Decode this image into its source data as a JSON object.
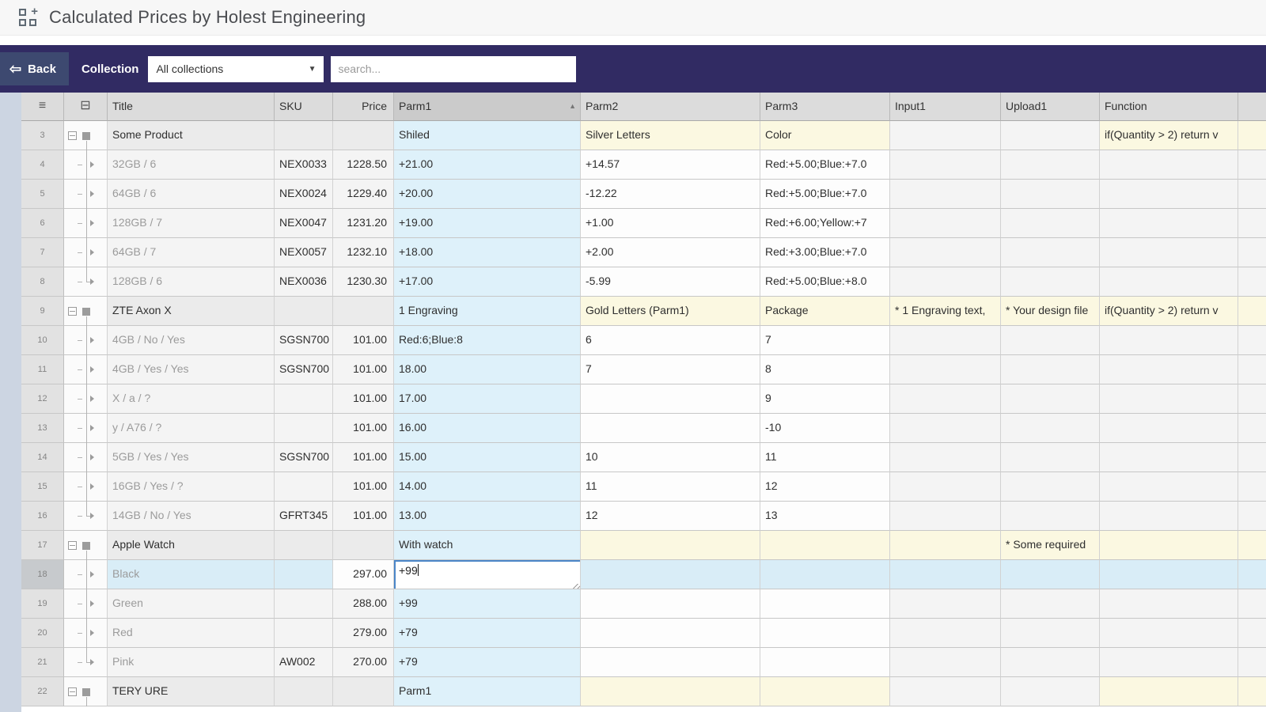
{
  "app": {
    "title": "Calculated Prices by Holest Engineering"
  },
  "toolbar": {
    "back": "Back",
    "collection_label": "Collection",
    "collection_value": "All collections",
    "search_placeholder": "search..."
  },
  "colors": {
    "toolbar_bg": "#312b63",
    "back_button_bg": "#3d4970",
    "parm1_cell": "#def1fa",
    "group_param_cell": "#fbf8e1",
    "selected_row": "#d9edf7",
    "edit_border": "#4a86c8"
  },
  "grid": {
    "header": {
      "menu_icon": "≡",
      "collapse_all_icon": "⊟",
      "columns": [
        {
          "key": "title",
          "label": "Title"
        },
        {
          "key": "sku",
          "label": "SKU"
        },
        {
          "key": "price",
          "label": "Price"
        },
        {
          "key": "parm1",
          "label": "Parm1"
        },
        {
          "key": "parm2",
          "label": "Parm2"
        },
        {
          "key": "parm3",
          "label": "Parm3"
        },
        {
          "key": "input1",
          "label": "Input1"
        },
        {
          "key": "upload1",
          "label": "Upload1"
        },
        {
          "key": "func",
          "label": "Function"
        },
        {
          "key": "sliver",
          "label": ""
        }
      ],
      "sort": {
        "column": "Parm1",
        "direction": "asc",
        "arrow": "▲"
      }
    },
    "edit": {
      "row": 18,
      "column": "Parm1",
      "value": "+99"
    },
    "rows": [
      {
        "num": 3,
        "kind": "group",
        "cells": [
          [
            "Some Product",
            "g"
          ],
          [
            "",
            "g"
          ],
          [
            "",
            "g"
          ],
          [
            "Shiled",
            "b"
          ],
          [
            "Silver Letters",
            "y"
          ],
          [
            "Color",
            "y"
          ],
          [
            "",
            "lg"
          ],
          [
            "",
            "lg"
          ],
          [
            "if(Quantity > 2)   return v",
            "y"
          ],
          [
            "",
            "y"
          ]
        ]
      },
      {
        "num": 4,
        "kind": "child",
        "cells": [
          [
            "32GB / 6",
            "lg"
          ],
          [
            "NEX0033",
            "lg"
          ],
          [
            "1228.50",
            "lg"
          ],
          [
            "+21.00",
            "b"
          ],
          [
            "+14.57",
            "w"
          ],
          [
            "Red:+5.00;Blue:+7.0",
            "w"
          ],
          [
            "",
            "lg"
          ],
          [
            "",
            "lg"
          ],
          [
            "",
            "lg"
          ],
          [
            "",
            "lg"
          ]
        ]
      },
      {
        "num": 5,
        "kind": "child",
        "cells": [
          [
            "64GB / 6",
            "lg"
          ],
          [
            "NEX0024",
            "lg"
          ],
          [
            "1229.40",
            "lg"
          ],
          [
            "+20.00",
            "b"
          ],
          [
            "-12.22",
            "w"
          ],
          [
            "Red:+5.00;Blue:+7.0",
            "w"
          ],
          [
            "",
            "lg"
          ],
          [
            "",
            "lg"
          ],
          [
            "",
            "lg"
          ],
          [
            "",
            "lg"
          ]
        ]
      },
      {
        "num": 6,
        "kind": "child",
        "cells": [
          [
            "128GB / 7",
            "lg"
          ],
          [
            "NEX0047",
            "lg"
          ],
          [
            "1231.20",
            "lg"
          ],
          [
            "+19.00",
            "b"
          ],
          [
            "+1.00",
            "w"
          ],
          [
            "Red:+6.00;Yellow:+7",
            "w"
          ],
          [
            "",
            "lg"
          ],
          [
            "",
            "lg"
          ],
          [
            "",
            "lg"
          ],
          [
            "",
            "lg"
          ]
        ]
      },
      {
        "num": 7,
        "kind": "child",
        "cells": [
          [
            "64GB / 7",
            "lg"
          ],
          [
            "NEX0057",
            "lg"
          ],
          [
            "1232.10",
            "lg"
          ],
          [
            "+18.00",
            "b"
          ],
          [
            "+2.00",
            "w"
          ],
          [
            "Red:+3.00;Blue:+7.0",
            "w"
          ],
          [
            "",
            "lg"
          ],
          [
            "",
            "lg"
          ],
          [
            "",
            "lg"
          ],
          [
            "",
            "lg"
          ]
        ]
      },
      {
        "num": 8,
        "kind": "childlast",
        "cells": [
          [
            "128GB / 6",
            "lg"
          ],
          [
            "NEX0036",
            "lg"
          ],
          [
            "1230.30",
            "lg"
          ],
          [
            "+17.00",
            "b"
          ],
          [
            "-5.99",
            "w"
          ],
          [
            "Red:+5.00;Blue:+8.0",
            "w"
          ],
          [
            "",
            "lg"
          ],
          [
            "",
            "lg"
          ],
          [
            "",
            "lg"
          ],
          [
            "",
            "lg"
          ]
        ]
      },
      {
        "num": 9,
        "kind": "group",
        "cells": [
          [
            "ZTE Axon X",
            "g"
          ],
          [
            "",
            "g"
          ],
          [
            "",
            "g"
          ],
          [
            "1 Engraving",
            "b"
          ],
          [
            "Gold Letters (Parm1)",
            "y"
          ],
          [
            "Package",
            "y"
          ],
          [
            "* 1 Engraving text,",
            "y"
          ],
          [
            "* Your design file",
            "y"
          ],
          [
            "if(Quantity > 2)   return v",
            "y"
          ],
          [
            "",
            "y"
          ]
        ]
      },
      {
        "num": 10,
        "kind": "child",
        "cells": [
          [
            "4GB / No / Yes",
            "lg"
          ],
          [
            "SGSN700",
            "lg"
          ],
          [
            "101.00",
            "lg"
          ],
          [
            "Red:6;Blue:8",
            "b"
          ],
          [
            "6",
            "w"
          ],
          [
            "7",
            "w"
          ],
          [
            "",
            "lg"
          ],
          [
            "",
            "lg"
          ],
          [
            "",
            "lg"
          ],
          [
            "",
            "lg"
          ]
        ]
      },
      {
        "num": 11,
        "kind": "child",
        "cells": [
          [
            "4GB / Yes / Yes",
            "lg"
          ],
          [
            "SGSN700",
            "lg"
          ],
          [
            "101.00",
            "lg"
          ],
          [
            "18.00",
            "b"
          ],
          [
            "7",
            "w"
          ],
          [
            "8",
            "w"
          ],
          [
            "",
            "lg"
          ],
          [
            "",
            "lg"
          ],
          [
            "",
            "lg"
          ],
          [
            "",
            "lg"
          ]
        ]
      },
      {
        "num": 12,
        "kind": "child",
        "cells": [
          [
            "X / a / ?",
            "lg"
          ],
          [
            "",
            "lg"
          ],
          [
            "101.00",
            "lg"
          ],
          [
            "17.00",
            "b"
          ],
          [
            "",
            "w"
          ],
          [
            "9",
            "w"
          ],
          [
            "",
            "lg"
          ],
          [
            "",
            "lg"
          ],
          [
            "",
            "lg"
          ],
          [
            "",
            "lg"
          ]
        ]
      },
      {
        "num": 13,
        "kind": "child",
        "cells": [
          [
            "y / A76 / ?",
            "lg"
          ],
          [
            "",
            "lg"
          ],
          [
            "101.00",
            "lg"
          ],
          [
            "16.00",
            "b"
          ],
          [
            "",
            "w"
          ],
          [
            "-10",
            "w"
          ],
          [
            "",
            "lg"
          ],
          [
            "",
            "lg"
          ],
          [
            "",
            "lg"
          ],
          [
            "",
            "lg"
          ]
        ]
      },
      {
        "num": 14,
        "kind": "child",
        "cells": [
          [
            "5GB / Yes / Yes",
            "lg"
          ],
          [
            "SGSN700",
            "lg"
          ],
          [
            "101.00",
            "lg"
          ],
          [
            "15.00",
            "b"
          ],
          [
            "10",
            "w"
          ],
          [
            "11",
            "w"
          ],
          [
            "",
            "lg"
          ],
          [
            "",
            "lg"
          ],
          [
            "",
            "lg"
          ],
          [
            "",
            "lg"
          ]
        ]
      },
      {
        "num": 15,
        "kind": "child",
        "cells": [
          [
            "16GB / Yes / ?",
            "lg"
          ],
          [
            "",
            "lg"
          ],
          [
            "101.00",
            "lg"
          ],
          [
            "14.00",
            "b"
          ],
          [
            "11",
            "w"
          ],
          [
            "12",
            "w"
          ],
          [
            "",
            "lg"
          ],
          [
            "",
            "lg"
          ],
          [
            "",
            "lg"
          ],
          [
            "",
            "lg"
          ]
        ]
      },
      {
        "num": 16,
        "kind": "childlast",
        "cells": [
          [
            "14GB / No / Yes",
            "lg"
          ],
          [
            "GFRT345",
            "lg"
          ],
          [
            "101.00",
            "lg"
          ],
          [
            "13.00",
            "b"
          ],
          [
            "12",
            "w"
          ],
          [
            "13",
            "w"
          ],
          [
            "",
            "lg"
          ],
          [
            "",
            "lg"
          ],
          [
            "",
            "lg"
          ],
          [
            "",
            "lg"
          ]
        ]
      },
      {
        "num": 17,
        "kind": "group",
        "cells": [
          [
            "Apple Watch",
            "g"
          ],
          [
            "",
            "g"
          ],
          [
            "",
            "g"
          ],
          [
            "With watch",
            "b"
          ],
          [
            "",
            "y"
          ],
          [
            "",
            "y"
          ],
          [
            "",
            "y"
          ],
          [
            "* Some required",
            "y"
          ],
          [
            "",
            "y"
          ],
          [
            "",
            "y"
          ]
        ]
      },
      {
        "num": 18,
        "kind": "child",
        "selected": true,
        "editing": true,
        "cells": [
          [
            "Black",
            "s"
          ],
          [
            "",
            "s"
          ],
          [
            "297.00",
            "w"
          ],
          [
            "",
            "s"
          ],
          [
            "",
            "s"
          ],
          [
            "",
            "s"
          ],
          [
            "",
            "s"
          ],
          [
            "",
            "s"
          ],
          [
            "",
            "s"
          ],
          [
            "",
            "s"
          ]
        ]
      },
      {
        "num": 19,
        "kind": "child",
        "cells": [
          [
            "Green",
            "lg"
          ],
          [
            "",
            "lg"
          ],
          [
            "288.00",
            "lg"
          ],
          [
            "+99",
            "b"
          ],
          [
            "",
            "w"
          ],
          [
            "",
            "w"
          ],
          [
            "",
            "lg"
          ],
          [
            "",
            "lg"
          ],
          [
            "",
            "lg"
          ],
          [
            "",
            "lg"
          ]
        ]
      },
      {
        "num": 20,
        "kind": "child",
        "cells": [
          [
            "Red",
            "lg"
          ],
          [
            "",
            "lg"
          ],
          [
            "279.00",
            "lg"
          ],
          [
            "+79",
            "b"
          ],
          [
            "",
            "w"
          ],
          [
            "",
            "w"
          ],
          [
            "",
            "lg"
          ],
          [
            "",
            "lg"
          ],
          [
            "",
            "lg"
          ],
          [
            "",
            "lg"
          ]
        ]
      },
      {
        "num": 21,
        "kind": "childlast",
        "cells": [
          [
            "Pink",
            "lg"
          ],
          [
            "AW002",
            "lg"
          ],
          [
            "270.00",
            "lg"
          ],
          [
            "+79",
            "b"
          ],
          [
            "",
            "w"
          ],
          [
            "",
            "w"
          ],
          [
            "",
            "lg"
          ],
          [
            "",
            "lg"
          ],
          [
            "",
            "lg"
          ],
          [
            "",
            "lg"
          ]
        ]
      },
      {
        "num": 22,
        "kind": "group",
        "cells": [
          [
            "TERY URE",
            "g"
          ],
          [
            "",
            "g"
          ],
          [
            "",
            "g"
          ],
          [
            "Parm1",
            "b"
          ],
          [
            "",
            "y"
          ],
          [
            "",
            "y"
          ],
          [
            "",
            "lg"
          ],
          [
            "",
            "lg"
          ],
          [
            "",
            "y"
          ],
          [
            "",
            "y"
          ]
        ]
      }
    ]
  }
}
